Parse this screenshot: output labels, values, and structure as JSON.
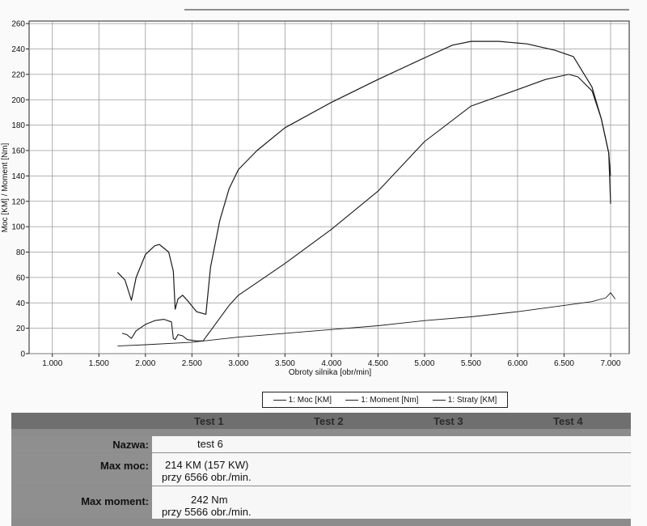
{
  "chart_data": {
    "type": "line",
    "title": "",
    "xlabel": "Obroty silnika [obr/min]",
    "ylabel": "Moc [KM] / Moment [Nm]",
    "xlim": [
      750,
      7200
    ],
    "ylim": [
      0,
      262
    ],
    "x_ticks": [
      1000,
      1500,
      2000,
      2500,
      3000,
      3500,
      4000,
      4500,
      5000,
      5500,
      6000,
      6500,
      7000
    ],
    "x_tick_labels": [
      "1.000",
      "1.500",
      "2.000",
      "2.500",
      "3.000",
      "3.500",
      "4.000",
      "4.500",
      "5.000",
      "5.500",
      "6.000",
      "6.500",
      "7.000"
    ],
    "y_ticks": [
      0,
      20,
      40,
      60,
      80,
      100,
      120,
      140,
      160,
      180,
      200,
      220,
      240,
      260
    ],
    "y_tick_labels": [
      "0",
      "20",
      "40",
      "60",
      "80",
      "100",
      "120",
      "140",
      "160",
      "180",
      "200",
      "220",
      "240",
      "260"
    ],
    "grid": true,
    "series": [
      {
        "name": "1: Moc [KM]",
        "points": [
          [
            1750,
            16
          ],
          [
            1800,
            15
          ],
          [
            1850,
            12
          ],
          [
            1900,
            18
          ],
          [
            2000,
            23
          ],
          [
            2100,
            26
          ],
          [
            2200,
            27
          ],
          [
            2280,
            25
          ],
          [
            2300,
            12
          ],
          [
            2320,
            11
          ],
          [
            2350,
            15
          ],
          [
            2400,
            14
          ],
          [
            2450,
            11
          ],
          [
            2550,
            10
          ],
          [
            2620,
            10
          ],
          [
            2700,
            18
          ],
          [
            2800,
            28
          ],
          [
            2900,
            38
          ],
          [
            3000,
            46
          ],
          [
            3200,
            56
          ],
          [
            3500,
            71
          ],
          [
            4000,
            98
          ],
          [
            4500,
            128
          ],
          [
            5000,
            167
          ],
          [
            5500,
            195
          ],
          [
            6000,
            208
          ],
          [
            6300,
            216
          ],
          [
            6550,
            220
          ],
          [
            6650,
            218
          ],
          [
            6800,
            207
          ],
          [
            6900,
            185
          ],
          [
            6980,
            158
          ],
          [
            7000,
            140
          ]
        ]
      },
      {
        "name": "1: Moment [Nm]",
        "points": [
          [
            1700,
            64
          ],
          [
            1780,
            58
          ],
          [
            1850,
            42
          ],
          [
            1900,
            60
          ],
          [
            2000,
            78
          ],
          [
            2100,
            85
          ],
          [
            2150,
            86
          ],
          [
            2250,
            80
          ],
          [
            2300,
            65
          ],
          [
            2320,
            35
          ],
          [
            2350,
            43
          ],
          [
            2400,
            46
          ],
          [
            2450,
            42
          ],
          [
            2550,
            33
          ],
          [
            2650,
            31
          ],
          [
            2700,
            68
          ],
          [
            2800,
            105
          ],
          [
            2900,
            130
          ],
          [
            3000,
            145
          ],
          [
            3200,
            160
          ],
          [
            3500,
            178
          ],
          [
            4000,
            198
          ],
          [
            4500,
            216
          ],
          [
            5000,
            233
          ],
          [
            5300,
            243
          ],
          [
            5500,
            246
          ],
          [
            5800,
            246
          ],
          [
            6100,
            244
          ],
          [
            6400,
            239
          ],
          [
            6600,
            234
          ],
          [
            6800,
            210
          ],
          [
            6900,
            185
          ],
          [
            6980,
            158
          ],
          [
            7000,
            118
          ]
        ]
      },
      {
        "name": "1: Straty [KM]",
        "points": [
          [
            1700,
            6
          ],
          [
            2000,
            7
          ],
          [
            2500,
            9
          ],
          [
            3000,
            13
          ],
          [
            3500,
            16
          ],
          [
            4000,
            19
          ],
          [
            4500,
            22
          ],
          [
            5000,
            26
          ],
          [
            5500,
            29
          ],
          [
            6000,
            33
          ],
          [
            6500,
            38
          ],
          [
            6800,
            41
          ],
          [
            6950,
            44
          ],
          [
            7000,
            48
          ],
          [
            7050,
            43
          ]
        ]
      }
    ]
  },
  "legend": {
    "items": [
      "1: Moc [KM]",
      "1: Moment [Nm]",
      "1: Straty [KM]"
    ]
  },
  "results": {
    "tests": [
      "Test 1",
      "Test 2",
      "Test 3",
      "Test 4"
    ],
    "name_label": "Nazwa:",
    "name_value": "test 6",
    "max_power_label": "Max moc:",
    "max_power_value": "214 KM (157 KW)",
    "max_power_rpm": "przy 6566 obr./min.",
    "max_torque_label": "Max moment:",
    "max_torque_value": "242 Nm",
    "max_torque_rpm": "przy 5566 obr./min."
  }
}
